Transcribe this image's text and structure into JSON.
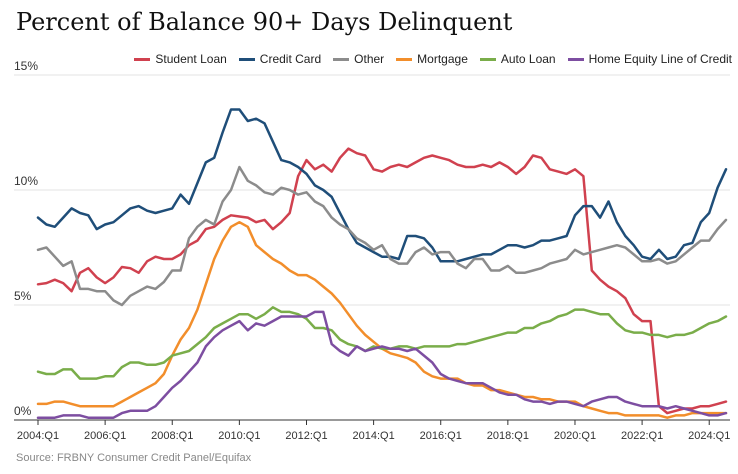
{
  "chart_data": {
    "type": "line",
    "title": "Percent of Balance 90+ Days Delinquent",
    "xlabel": "",
    "ylabel": "",
    "x": [
      "2004:Q1",
      "2004:Q2",
      "2004:Q3",
      "2004:Q4",
      "2005:Q1",
      "2005:Q2",
      "2005:Q3",
      "2005:Q4",
      "2006:Q1",
      "2006:Q2",
      "2006:Q3",
      "2006:Q4",
      "2007:Q1",
      "2007:Q2",
      "2007:Q3",
      "2007:Q4",
      "2008:Q1",
      "2008:Q2",
      "2008:Q3",
      "2008:Q4",
      "2009:Q1",
      "2009:Q2",
      "2009:Q3",
      "2009:Q4",
      "2010:Q1",
      "2010:Q2",
      "2010:Q3",
      "2010:Q4",
      "2011:Q1",
      "2011:Q2",
      "2011:Q3",
      "2011:Q4",
      "2012:Q1",
      "2012:Q2",
      "2012:Q3",
      "2012:Q4",
      "2013:Q1",
      "2013:Q2",
      "2013:Q3",
      "2013:Q4",
      "2014:Q1",
      "2014:Q2",
      "2014:Q3",
      "2014:Q4",
      "2015:Q1",
      "2015:Q2",
      "2015:Q3",
      "2015:Q4",
      "2016:Q1",
      "2016:Q2",
      "2016:Q3",
      "2016:Q4",
      "2017:Q1",
      "2017:Q2",
      "2017:Q3",
      "2017:Q4",
      "2018:Q1",
      "2018:Q2",
      "2018:Q3",
      "2018:Q4",
      "2019:Q1",
      "2019:Q2",
      "2019:Q3",
      "2019:Q4",
      "2020:Q1",
      "2020:Q2",
      "2020:Q3",
      "2020:Q4",
      "2021:Q1",
      "2021:Q2",
      "2021:Q3",
      "2021:Q4",
      "2022:Q1",
      "2022:Q2",
      "2022:Q3",
      "2022:Q4",
      "2023:Q1",
      "2023:Q2",
      "2023:Q3",
      "2023:Q4",
      "2024:Q1",
      "2024:Q2",
      "2024:Q3"
    ],
    "x_ticks": [
      "2004:Q1",
      "2006:Q1",
      "2008:Q1",
      "2010:Q1",
      "2012:Q1",
      "2014:Q1",
      "2016:Q1",
      "2018:Q1",
      "2020:Q1",
      "2022:Q1",
      "2024:Q1"
    ],
    "y_ticks": [
      0,
      5,
      10,
      15
    ],
    "y_tick_labels": [
      "0%",
      "5%",
      "10%",
      "15%"
    ],
    "ylim": [
      0,
      15
    ],
    "grid": true,
    "legend_position": "top-right",
    "series": [
      {
        "name": "Student Loan",
        "color": "#d0414f",
        "values": [
          5.9,
          5.95,
          6.1,
          5.95,
          5.6,
          6.4,
          6.6,
          6.2,
          5.95,
          6.2,
          6.65,
          6.6,
          6.4,
          6.9,
          7.1,
          7.0,
          7.0,
          7.2,
          7.6,
          7.8,
          8.3,
          8.4,
          8.7,
          8.9,
          8.85,
          8.8,
          8.6,
          8.7,
          8.3,
          8.6,
          9.0,
          10.6,
          11.3,
          10.9,
          11.1,
          10.8,
          11.4,
          11.8,
          11.6,
          11.5,
          10.9,
          10.8,
          11.0,
          11.1,
          11.0,
          11.2,
          11.4,
          11.5,
          11.4,
          11.3,
          11.1,
          11.0,
          11.0,
          11.1,
          11.0,
          11.2,
          11.0,
          10.7,
          11.0,
          11.5,
          11.4,
          10.9,
          10.8,
          10.7,
          10.9,
          10.6,
          6.5,
          6.1,
          5.8,
          5.6,
          5.3,
          4.6,
          4.3,
          4.3,
          0.6,
          0.3,
          0.4,
          0.5,
          0.5,
          0.6,
          0.6,
          0.7,
          0.8
        ]
      },
      {
        "name": "Credit Card",
        "color": "#1f4e79",
        "values": [
          8.8,
          8.5,
          8.4,
          8.8,
          9.2,
          9.0,
          8.9,
          8.3,
          8.5,
          8.6,
          8.9,
          9.2,
          9.3,
          9.1,
          9.0,
          9.1,
          9.2,
          9.8,
          9.4,
          10.3,
          11.2,
          11.4,
          12.5,
          13.5,
          13.5,
          13.0,
          13.1,
          12.9,
          12.1,
          11.3,
          11.2,
          11.0,
          10.7,
          10.2,
          10.0,
          9.7,
          9.0,
          8.3,
          7.7,
          7.5,
          7.3,
          7.1,
          7.1,
          7.0,
          8.0,
          8.0,
          7.9,
          7.5,
          6.9,
          6.9,
          6.9,
          7.0,
          7.1,
          7.2,
          7.2,
          7.4,
          7.6,
          7.6,
          7.5,
          7.6,
          7.8,
          7.8,
          7.9,
          8.0,
          8.9,
          9.3,
          9.3,
          8.8,
          9.5,
          8.6,
          8.0,
          7.6,
          7.1,
          7.0,
          7.4,
          7.0,
          7.1,
          7.6,
          7.7,
          8.6,
          9.0,
          10.1,
          10.9
        ]
      },
      {
        "name": "Other",
        "color": "#8c8c8c",
        "values": [
          7.4,
          7.5,
          7.1,
          6.7,
          6.9,
          5.7,
          5.7,
          5.6,
          5.6,
          5.2,
          5.0,
          5.4,
          5.6,
          5.8,
          5.7,
          6.0,
          6.5,
          6.5,
          7.9,
          8.4,
          8.7,
          8.5,
          9.5,
          10.0,
          11.0,
          10.4,
          10.2,
          9.9,
          9.8,
          10.1,
          10.0,
          9.8,
          9.9,
          9.5,
          9.3,
          8.8,
          8.5,
          8.3,
          7.9,
          7.7,
          7.4,
          7.6,
          7.0,
          6.8,
          6.8,
          7.3,
          7.5,
          7.2,
          7.3,
          7.3,
          6.8,
          6.6,
          7.0,
          7.0,
          6.5,
          6.5,
          6.7,
          6.4,
          6.4,
          6.5,
          6.6,
          6.8,
          6.9,
          7.0,
          7.4,
          7.2,
          7.3,
          7.4,
          7.5,
          7.6,
          7.5,
          7.2,
          6.9,
          6.9,
          7.0,
          6.8,
          6.9,
          7.2,
          7.5,
          7.8,
          7.8,
          8.3,
          8.7
        ]
      },
      {
        "name": "Mortgage",
        "color": "#f28e2b",
        "values": [
          0.7,
          0.7,
          0.8,
          0.8,
          0.7,
          0.6,
          0.6,
          0.6,
          0.6,
          0.6,
          0.8,
          1.0,
          1.2,
          1.4,
          1.6,
          2.0,
          2.8,
          3.5,
          4.0,
          4.8,
          5.9,
          7.0,
          7.8,
          8.4,
          8.6,
          8.4,
          7.6,
          7.3,
          7.0,
          6.8,
          6.5,
          6.3,
          6.3,
          6.1,
          5.8,
          5.5,
          5.1,
          4.6,
          4.1,
          3.7,
          3.4,
          3.1,
          2.9,
          2.8,
          2.7,
          2.5,
          2.1,
          1.9,
          1.8,
          1.8,
          1.8,
          1.6,
          1.5,
          1.5,
          1.3,
          1.3,
          1.2,
          1.1,
          1.0,
          1.0,
          0.9,
          0.9,
          0.8,
          0.8,
          0.8,
          0.6,
          0.5,
          0.4,
          0.3,
          0.3,
          0.2,
          0.2,
          0.2,
          0.2,
          0.2,
          0.1,
          0.2,
          0.2,
          0.3,
          0.3,
          0.3,
          0.3,
          0.3
        ]
      },
      {
        "name": "Auto Loan",
        "color": "#7aad4a",
        "values": [
          2.1,
          2.0,
          2.0,
          2.2,
          2.2,
          1.8,
          1.8,
          1.8,
          1.9,
          1.9,
          2.3,
          2.5,
          2.5,
          2.4,
          2.4,
          2.5,
          2.8,
          2.9,
          3.0,
          3.3,
          3.6,
          4.0,
          4.2,
          4.4,
          4.6,
          4.6,
          4.4,
          4.6,
          4.9,
          4.7,
          4.7,
          4.6,
          4.4,
          4.0,
          4.0,
          3.9,
          3.5,
          3.3,
          3.2,
          3.0,
          3.2,
          3.1,
          3.1,
          3.2,
          3.2,
          3.1,
          3.2,
          3.2,
          3.2,
          3.2,
          3.3,
          3.3,
          3.4,
          3.5,
          3.6,
          3.7,
          3.8,
          3.8,
          4.0,
          4.0,
          4.2,
          4.3,
          4.5,
          4.6,
          4.8,
          4.8,
          4.7,
          4.6,
          4.6,
          4.2,
          3.9,
          3.8,
          3.8,
          3.7,
          3.7,
          3.6,
          3.7,
          3.7,
          3.8,
          4.0,
          4.2,
          4.3,
          4.5
        ]
      },
      {
        "name": "Home Equity Line of Credit",
        "color": "#7d4ea1",
        "values": [
          0.1,
          0.1,
          0.1,
          0.2,
          0.2,
          0.2,
          0.1,
          0.1,
          0.1,
          0.1,
          0.3,
          0.4,
          0.4,
          0.4,
          0.6,
          1.0,
          1.4,
          1.7,
          2.1,
          2.5,
          3.2,
          3.6,
          3.9,
          4.1,
          4.3,
          3.9,
          4.2,
          4.1,
          4.3,
          4.5,
          4.5,
          4.5,
          4.5,
          4.7,
          4.7,
          3.3,
          3.0,
          2.8,
          3.2,
          3.0,
          3.1,
          3.2,
          3.1,
          3.1,
          3.0,
          3.1,
          2.8,
          2.5,
          2.0,
          1.8,
          1.7,
          1.6,
          1.6,
          1.6,
          1.4,
          1.2,
          1.1,
          1.1,
          0.9,
          0.8,
          0.8,
          0.7,
          0.8,
          0.8,
          0.7,
          0.6,
          0.8,
          0.9,
          1.0,
          1.0,
          0.8,
          0.7,
          0.6,
          0.6,
          0.6,
          0.5,
          0.6,
          0.5,
          0.4,
          0.3,
          0.2,
          0.2,
          0.3
        ]
      }
    ]
  },
  "source": "Source: FRBNY Consumer Credit Panel/Equifax"
}
